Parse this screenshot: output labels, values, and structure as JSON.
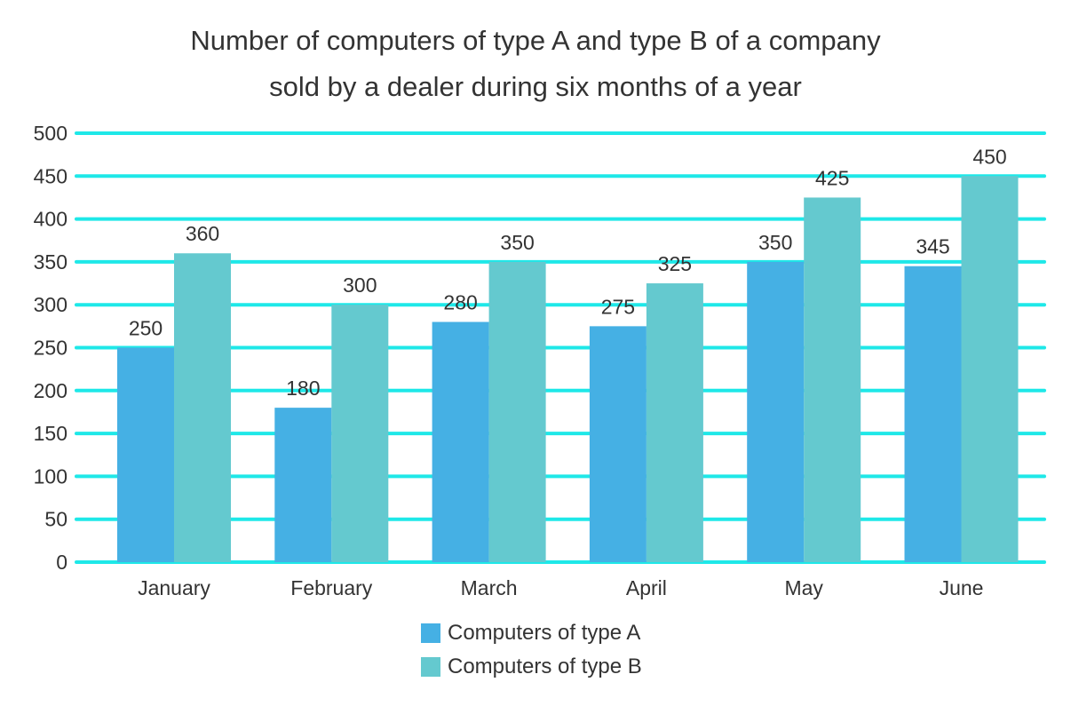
{
  "chart_data": {
    "type": "bar",
    "title_line1": "Number of computers of type A and type B of a company",
    "title_line2": "sold by a dealer during six months of a year",
    "xlabel": "",
    "ylabel": "",
    "categories": [
      "January",
      "February",
      "March",
      "April",
      "May",
      "June"
    ],
    "series": [
      {
        "name": "Computers of type A",
        "values": [
          250,
          180,
          280,
          275,
          350,
          345
        ],
        "color": "#45B0E4"
      },
      {
        "name": "Computers of type B",
        "values": [
          360,
          300,
          350,
          325,
          425,
          450
        ],
        "color": "#64C9CF"
      }
    ],
    "ylim": [
      0,
      500
    ],
    "yticks": [
      0,
      50,
      100,
      150,
      200,
      250,
      300,
      350,
      400,
      450,
      500
    ],
    "grid": true,
    "grid_color": "#1EE8E8",
    "legend_position": "bottom-center",
    "data_labels": true
  }
}
